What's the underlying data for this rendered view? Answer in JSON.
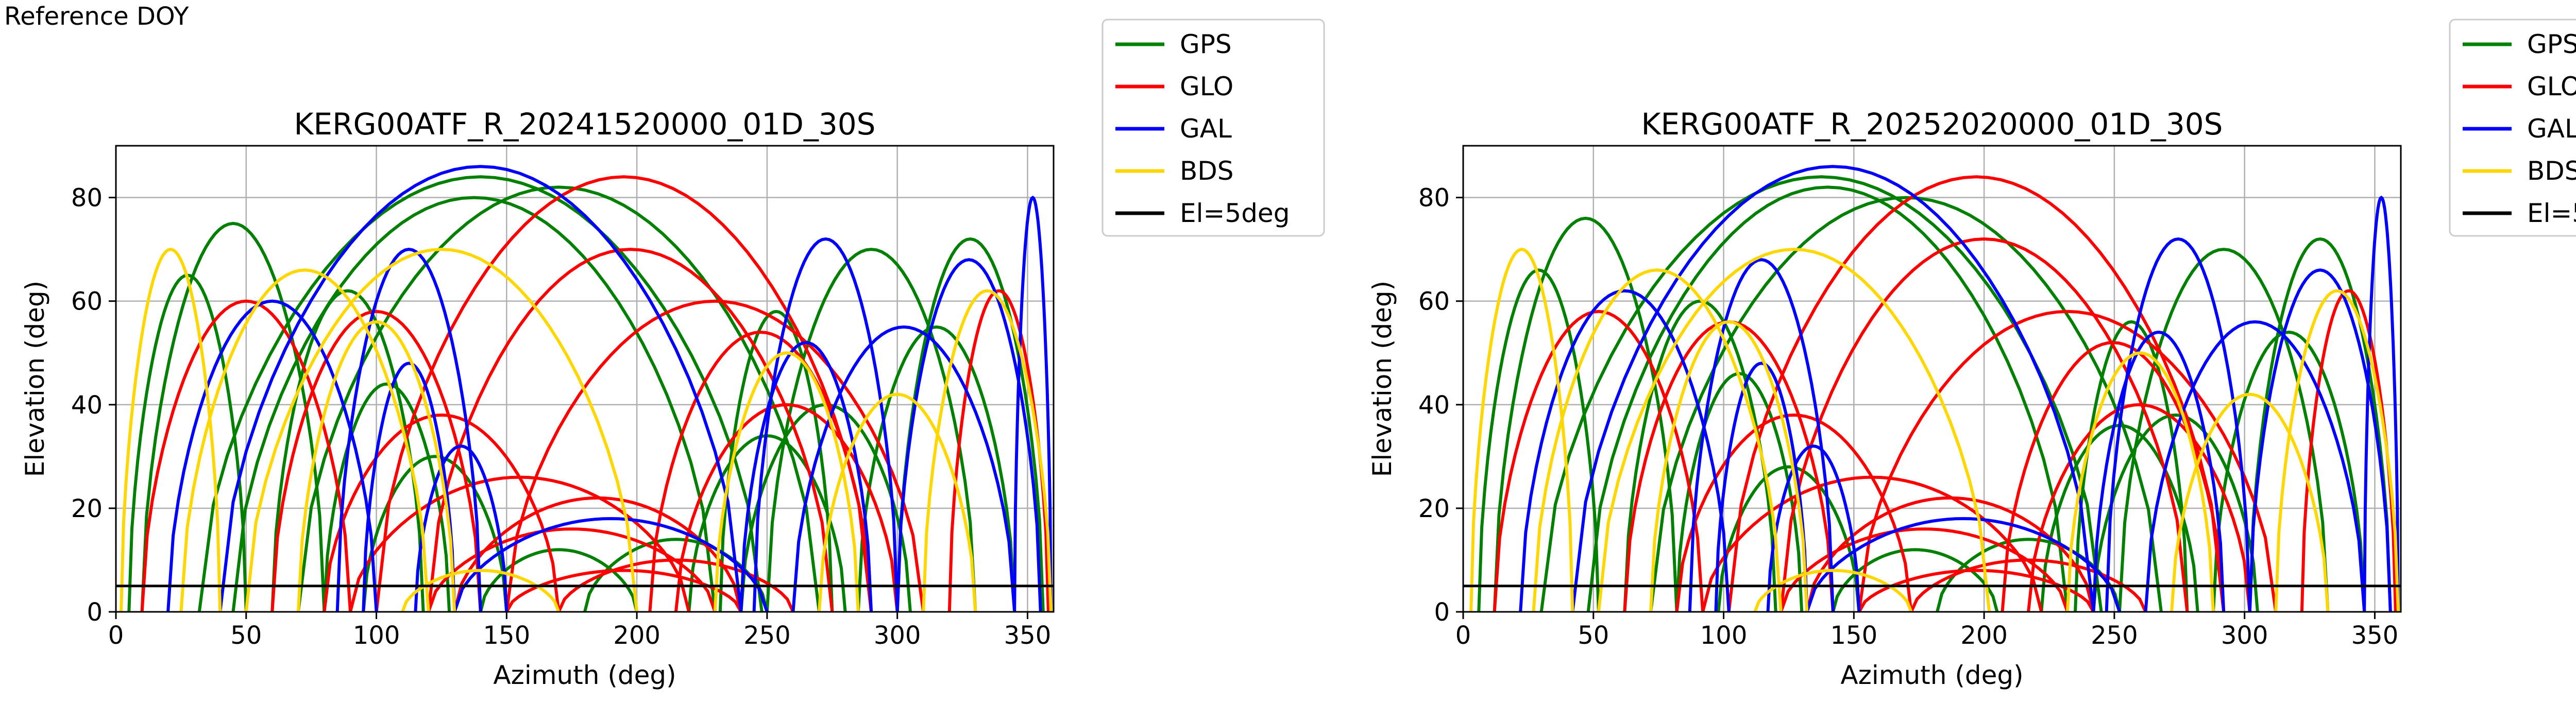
{
  "figure": {
    "title": "Reference DOY"
  },
  "legend": [
    {
      "label": "GPS",
      "color": "#008000"
    },
    {
      "label": "GLO",
      "color": "#ff0000"
    },
    {
      "label": "GAL",
      "color": "#0000ff"
    },
    {
      "label": "BDS",
      "color": "#ffd700"
    },
    {
      "label": "El=5deg",
      "color": "#000000"
    }
  ],
  "chart_data": [
    {
      "type": "scatter",
      "title": "KERG00ATF_R_20241520000_01D_30S",
      "xlabel": "Azimuth (deg)",
      "ylabel": "Elevation (deg)",
      "xlim": [
        0,
        360
      ],
      "ylim": [
        0,
        90
      ],
      "xticks": [
        0,
        50,
        100,
        150,
        200,
        250,
        300,
        350
      ],
      "yticks": [
        0,
        20,
        40,
        60,
        80
      ],
      "grid": true,
      "legend_position": "outside-top-right",
      "reference_line": {
        "label": "El=5deg",
        "y": 5
      },
      "series": [
        {
          "name": "GPS",
          "color": "#008000",
          "arcs": [
            {
              "az_rise": 32,
              "az_set": 248,
              "max_el": 84
            },
            {
              "az_rise": 45,
              "az_set": 230,
              "max_el": 80
            },
            {
              "az_rise": 70,
              "az_set": 270,
              "max_el": 82
            },
            {
              "az_rise": 60,
              "az_set": 118,
              "max_el": 62
            },
            {
              "az_rise": 80,
              "az_set": 128,
              "max_el": 44
            },
            {
              "az_rise": 95,
              "az_set": 150,
              "max_el": 30
            },
            {
              "az_rise": 240,
              "az_set": 305,
              "max_el": 40
            },
            {
              "az_rise": 232,
              "az_set": 275,
              "max_el": 58
            },
            {
              "az_rise": 250,
              "az_set": 330,
              "max_el": 70
            },
            {
              "az_rise": 300,
              "az_set": 356,
              "max_el": 72
            },
            {
              "az_rise": 285,
              "az_set": 345,
              "max_el": 55
            },
            {
              "az_rise": 5,
              "az_set": 50,
              "max_el": 65
            },
            {
              "az_rise": 10,
              "az_set": 80,
              "max_el": 75
            },
            {
              "az_rise": 140,
              "az_set": 200,
              "max_el": 12
            },
            {
              "az_rise": 180,
              "az_set": 250,
              "max_el": 14
            },
            {
              "az_rise": 220,
              "az_set": 280,
              "max_el": 34
            }
          ]
        },
        {
          "name": "GLO",
          "color": "#ff0000",
          "arcs": [
            {
              "az_rise": 100,
              "az_set": 290,
              "max_el": 84
            },
            {
              "az_rise": 120,
              "az_set": 275,
              "max_el": 70
            },
            {
              "az_rise": 150,
              "az_set": 310,
              "max_el": 60
            },
            {
              "az_rise": 80,
              "az_set": 170,
              "max_el": 38
            },
            {
              "az_rise": 60,
              "az_set": 140,
              "max_el": 58
            },
            {
              "az_rise": 205,
              "az_set": 290,
              "max_el": 54
            },
            {
              "az_rise": 215,
              "az_set": 300,
              "max_el": 40
            },
            {
              "az_rise": 130,
              "az_set": 240,
              "max_el": 22
            },
            {
              "az_rise": 120,
              "az_set": 230,
              "max_el": 16
            },
            {
              "az_rise": 170,
              "az_set": 260,
              "max_el": 10
            },
            {
              "az_rise": 150,
              "az_set": 240,
              "max_el": 8
            },
            {
              "az_rise": 10,
              "az_set": 90,
              "max_el": 60
            },
            {
              "az_rise": 320,
              "az_set": 358,
              "max_el": 62
            },
            {
              "az_rise": 90,
              "az_set": 220,
              "max_el": 26
            }
          ]
        },
        {
          "name": "GAL",
          "color": "#0000ff",
          "arcs": [
            {
              "az_rise": 40,
              "az_set": 240,
              "max_el": 86
            },
            {
              "az_rise": 95,
              "az_set": 130,
              "max_el": 48
            },
            {
              "az_rise": 85,
              "az_set": 140,
              "max_el": 70
            },
            {
              "az_rise": 20,
              "az_set": 100,
              "max_el": 60
            },
            {
              "az_rise": 115,
              "az_set": 150,
              "max_el": 32
            },
            {
              "az_rise": 240,
              "az_set": 290,
              "max_el": 52
            },
            {
              "az_rise": 245,
              "az_set": 300,
              "max_el": 72
            },
            {
              "az_rise": 260,
              "az_set": 345,
              "max_el": 55
            },
            {
              "az_rise": 300,
              "az_set": 355,
              "max_el": 68
            },
            {
              "az_rise": 130,
              "az_set": 250,
              "max_el": 18
            },
            {
              "az_rise": 345,
              "az_set": 359,
              "max_el": 80
            }
          ]
        },
        {
          "name": "BDS",
          "color": "#ffd700",
          "arcs": [
            {
              "az_rise": 50,
              "az_set": 200,
              "max_el": 70
            },
            {
              "az_rise": 70,
              "az_set": 130,
              "max_el": 56
            },
            {
              "az_rise": 25,
              "az_set": 120,
              "max_el": 66
            },
            {
              "az_rise": 230,
              "az_set": 285,
              "max_el": 50
            },
            {
              "az_rise": 270,
              "az_set": 330,
              "max_el": 42
            },
            {
              "az_rise": 310,
              "az_set": 359,
              "max_el": 62
            },
            {
              "az_rise": 2,
              "az_set": 40,
              "max_el": 70
            },
            {
              "az_rise": 110,
              "az_set": 170,
              "max_el": 8
            }
          ]
        }
      ]
    },
    {
      "type": "scatter",
      "title": "KERG00ATF_R_20252020000_01D_30S",
      "xlabel": "Azimuth (deg)",
      "ylabel": "Elevation (deg)",
      "xlim": [
        0,
        360
      ],
      "ylim": [
        0,
        90
      ],
      "xticks": [
        0,
        50,
        100,
        150,
        200,
        250,
        300,
        350
      ],
      "yticks": [
        0,
        20,
        40,
        60,
        80
      ],
      "grid": true,
      "legend_position": "outside-top-right",
      "reference_line": {
        "label": "El=5deg",
        "y": 5
      },
      "series": [
        {
          "name": "GPS",
          "color": "#008000",
          "arcs": [
            {
              "az_rise": 30,
              "az_set": 245,
              "max_el": 84
            },
            {
              "az_rise": 48,
              "az_set": 232,
              "max_el": 82
            },
            {
              "az_rise": 72,
              "az_set": 268,
              "max_el": 80
            },
            {
              "az_rise": 62,
              "az_set": 120,
              "max_el": 60
            },
            {
              "az_rise": 82,
              "az_set": 130,
              "max_el": 46
            },
            {
              "az_rise": 98,
              "az_set": 152,
              "max_el": 28
            },
            {
              "az_rise": 242,
              "az_set": 305,
              "max_el": 38
            },
            {
              "az_rise": 235,
              "az_set": 278,
              "max_el": 56
            },
            {
              "az_rise": 252,
              "az_set": 332,
              "max_el": 70
            },
            {
              "az_rise": 302,
              "az_set": 356,
              "max_el": 72
            },
            {
              "az_rise": 288,
              "az_set": 346,
              "max_el": 54
            },
            {
              "az_rise": 6,
              "az_set": 52,
              "max_el": 66
            },
            {
              "az_rise": 12,
              "az_set": 82,
              "max_el": 76
            },
            {
              "az_rise": 142,
              "az_set": 205,
              "max_el": 12
            },
            {
              "az_rise": 182,
              "az_set": 252,
              "max_el": 14
            },
            {
              "az_rise": 222,
              "az_set": 282,
              "max_el": 36
            }
          ]
        },
        {
          "name": "GLO",
          "color": "#ff0000",
          "arcs": [
            {
              "az_rise": 102,
              "az_set": 292,
              "max_el": 84
            },
            {
              "az_rise": 122,
              "az_set": 278,
              "max_el": 72
            },
            {
              "az_rise": 152,
              "az_set": 312,
              "max_el": 58
            },
            {
              "az_rise": 82,
              "az_set": 172,
              "max_el": 38
            },
            {
              "az_rise": 62,
              "az_set": 142,
              "max_el": 56
            },
            {
              "az_rise": 207,
              "az_set": 292,
              "max_el": 52
            },
            {
              "az_rise": 217,
              "az_set": 302,
              "max_el": 40
            },
            {
              "az_rise": 132,
              "az_set": 242,
              "max_el": 22
            },
            {
              "az_rise": 122,
              "az_set": 232,
              "max_el": 16
            },
            {
              "az_rise": 172,
              "az_set": 262,
              "max_el": 10
            },
            {
              "az_rise": 152,
              "az_set": 242,
              "max_el": 8
            },
            {
              "az_rise": 12,
              "az_set": 92,
              "max_el": 58
            },
            {
              "az_rise": 322,
              "az_set": 358,
              "max_el": 62
            },
            {
              "az_rise": 92,
              "az_set": 222,
              "max_el": 26
            }
          ]
        },
        {
          "name": "GAL",
          "color": "#0000ff",
          "arcs": [
            {
              "az_rise": 42,
              "az_set": 242,
              "max_el": 86
            },
            {
              "az_rise": 97,
              "az_set": 132,
              "max_el": 48
            },
            {
              "az_rise": 87,
              "az_set": 142,
              "max_el": 68
            },
            {
              "az_rise": 22,
              "az_set": 102,
              "max_el": 62
            },
            {
              "az_rise": 117,
              "az_set": 152,
              "max_el": 32
            },
            {
              "az_rise": 242,
              "az_set": 292,
              "max_el": 54
            },
            {
              "az_rise": 247,
              "az_set": 302,
              "max_el": 72
            },
            {
              "az_rise": 262,
              "az_set": 346,
              "max_el": 56
            },
            {
              "az_rise": 302,
              "az_set": 356,
              "max_el": 66
            },
            {
              "az_rise": 132,
              "az_set": 252,
              "max_el": 18
            },
            {
              "az_rise": 346,
              "az_set": 359,
              "max_el": 80
            }
          ]
        },
        {
          "name": "BDS",
          "color": "#ffd700",
          "arcs": [
            {
              "az_rise": 52,
              "az_set": 202,
              "max_el": 70
            },
            {
              "az_rise": 72,
              "az_set": 132,
              "max_el": 56
            },
            {
              "az_rise": 27,
              "az_set": 122,
              "max_el": 66
            },
            {
              "az_rise": 232,
              "az_set": 288,
              "max_el": 50
            },
            {
              "az_rise": 272,
              "az_set": 332,
              "max_el": 42
            },
            {
              "az_rise": 312,
              "az_set": 359,
              "max_el": 62
            },
            {
              "az_rise": 3,
              "az_set": 42,
              "max_el": 70
            },
            {
              "az_rise": 112,
              "az_set": 172,
              "max_el": 8
            }
          ]
        }
      ]
    }
  ]
}
